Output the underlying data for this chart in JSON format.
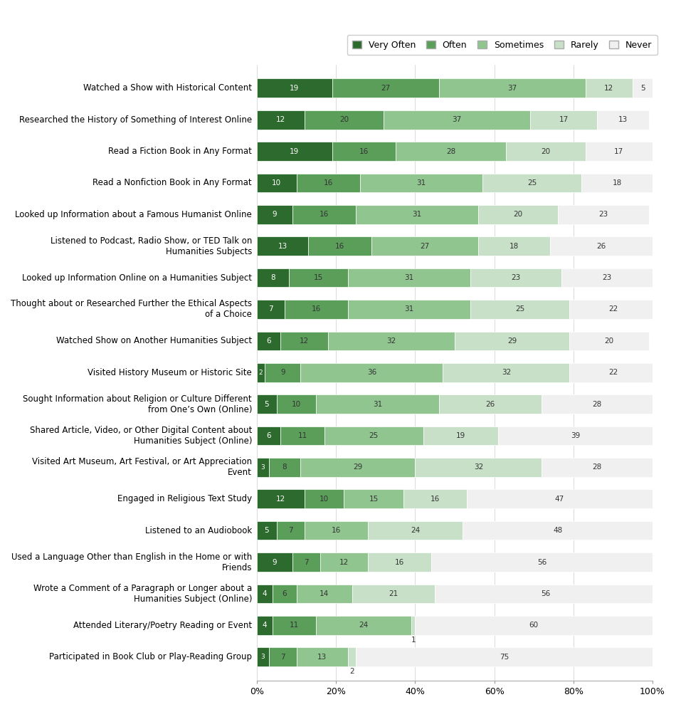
{
  "categories": [
    "Watched a Show with Historical Content",
    "Researched the History of Something of Interest Online",
    "Read a Fiction Book in Any Format",
    "Read a Nonfiction Book in Any Format",
    "Looked up Information about a Famous Humanist Online",
    "Listened to Podcast, Radio Show, or TED Talk on\nHumanities Subjects",
    "Looked up Information Online on a Humanities Subject",
    "Thought about or Researched Further the Ethical Aspects\nof a Choice",
    "Watched Show on Another Humanities Subject",
    "Visited History Museum or Historic Site",
    "Sought Information about Religion or Culture Different\nfrom One’s Own (Online)",
    "Shared Article, Video, or Other Digital Content about\nHumanities Subject (Online)",
    "Visited Art Museum, Art Festival, or Art Appreciation\nEvent",
    "Engaged in Religious Text Study",
    "Listened to an Audiobook",
    "Used a Language Other than English in the Home or with\nFriends",
    "Wrote a Comment of a Paragraph or Longer about a\nHumanities Subject (Online)",
    "Attended Literary/Poetry Reading or Event",
    "Participated in Book Club or Play-Reading Group"
  ],
  "very_often": [
    19,
    12,
    19,
    10,
    9,
    13,
    8,
    7,
    6,
    2,
    5,
    6,
    3,
    12,
    5,
    9,
    4,
    4,
    3
  ],
  "often": [
    27,
    20,
    16,
    16,
    16,
    16,
    15,
    16,
    12,
    9,
    10,
    11,
    8,
    10,
    7,
    7,
    6,
    11,
    7
  ],
  "sometimes": [
    37,
    37,
    28,
    31,
    31,
    27,
    31,
    31,
    32,
    36,
    31,
    25,
    29,
    15,
    16,
    12,
    14,
    24,
    13
  ],
  "rarely": [
    12,
    17,
    20,
    25,
    20,
    18,
    23,
    25,
    29,
    32,
    26,
    19,
    32,
    16,
    24,
    16,
    21,
    1,
    2
  ],
  "never": [
    5,
    13,
    17,
    18,
    23,
    26,
    23,
    22,
    20,
    22,
    28,
    39,
    28,
    47,
    48,
    56,
    56,
    60,
    75
  ],
  "rarely_label_below": [
    false,
    false,
    false,
    false,
    false,
    false,
    false,
    false,
    false,
    false,
    false,
    false,
    false,
    false,
    false,
    false,
    false,
    true,
    true
  ],
  "colors": {
    "very_often": "#2d6a2d",
    "often": "#5a9e5a",
    "sometimes": "#90c590",
    "rarely": "#c8e0c8",
    "never": "#f0f0f0"
  },
  "legend_labels": [
    "Very Often",
    "Often",
    "Sometimes",
    "Rarely",
    "Never"
  ],
  "background_color": "#ffffff",
  "bar_height": 0.6,
  "figwidth": 9.5,
  "figheight": 9.93,
  "dpi": 100
}
